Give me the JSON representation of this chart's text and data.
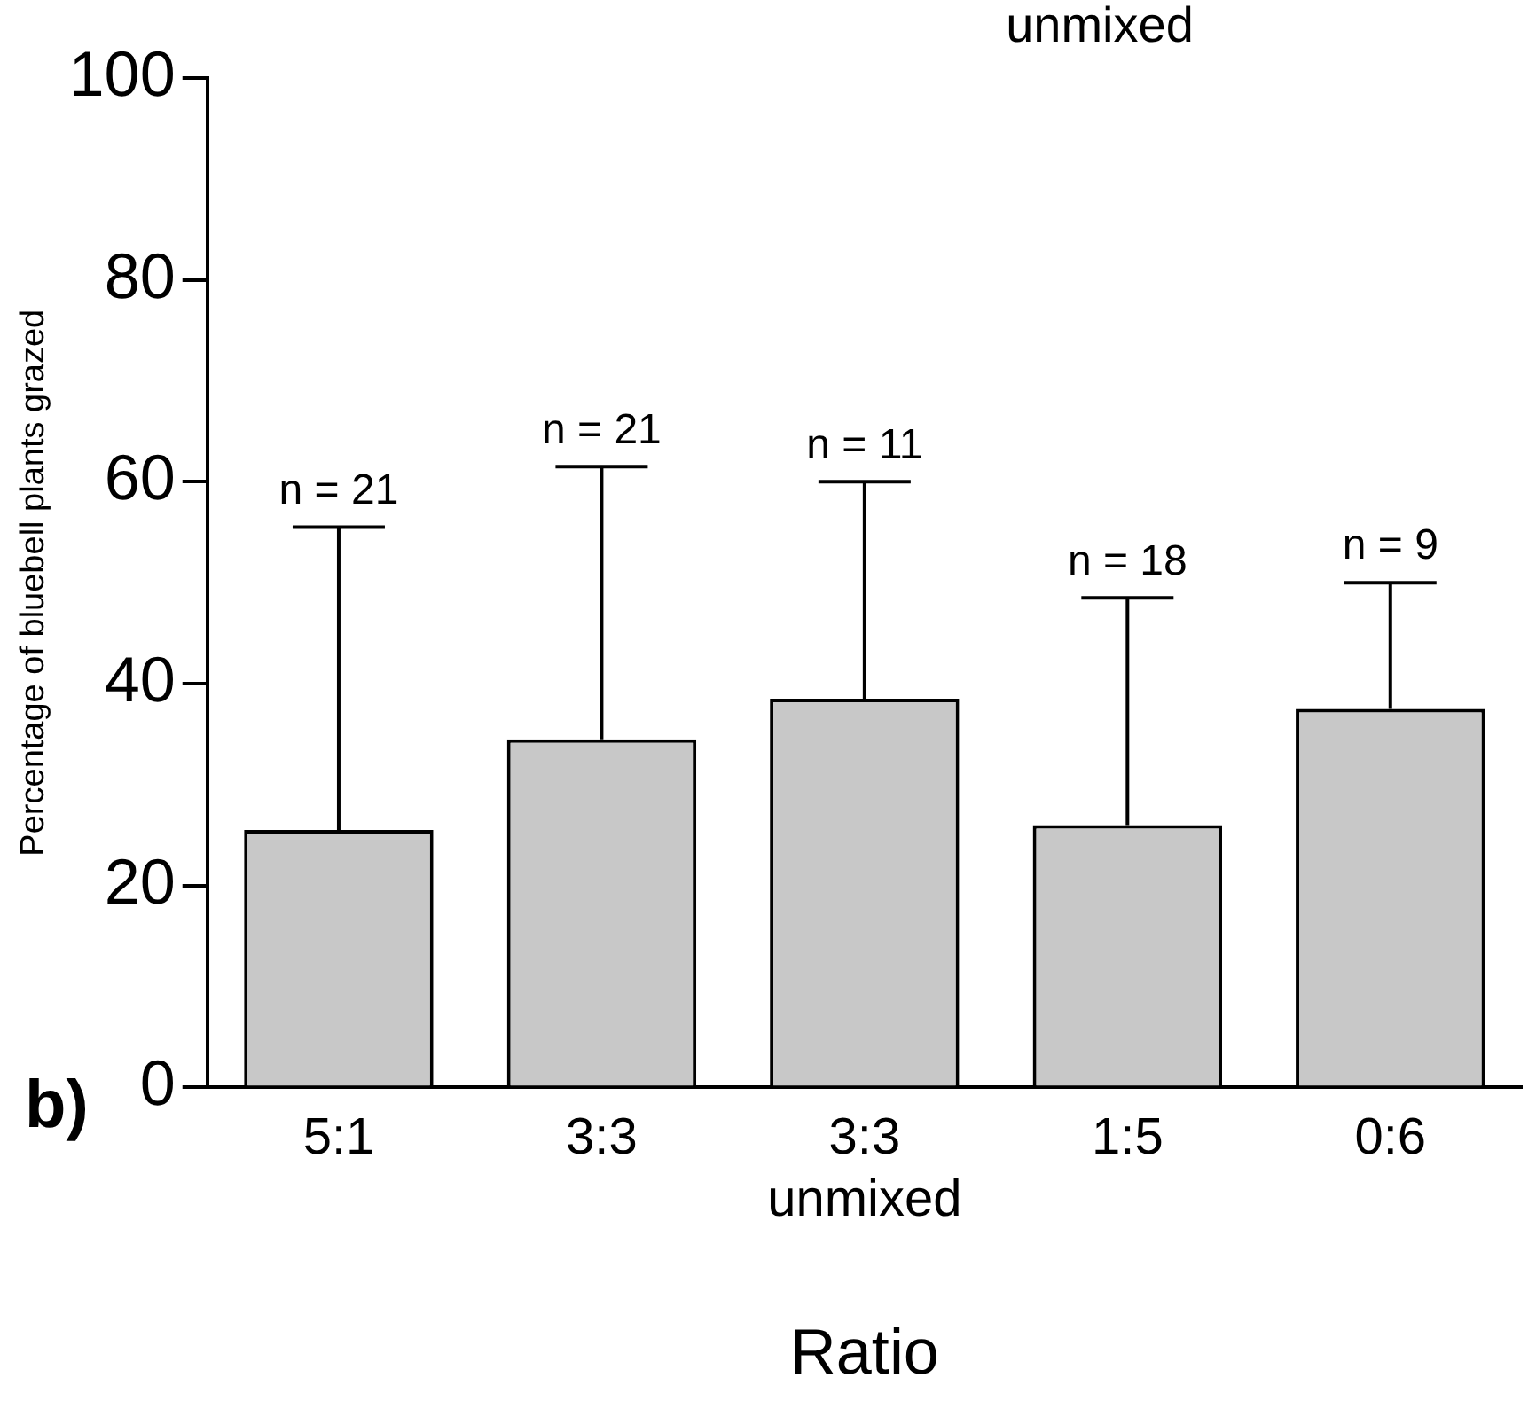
{
  "chart_data": {
    "type": "bar",
    "xlabel": "Ratio",
    "ylabel": "Percentage of bluebell plants grazed",
    "categories": [
      "5:1",
      "3:3",
      "3:3\nunmixed",
      "1:5",
      "0:6"
    ],
    "values": [
      25.5,
      34.5,
      38.5,
      26,
      37.5
    ],
    "errors": [
      [
        25.5,
        55.5
      ],
      [
        34.5,
        61.5
      ],
      [
        38.5,
        60
      ],
      [
        26,
        48.5
      ],
      [
        37.5,
        50
      ]
    ],
    "color": "#c8c8c8",
    "ylim": [
      0,
      100
    ],
    "yticks": [
      0,
      20,
      40,
      60,
      80,
      100
    ],
    "grid": false,
    "legend": false,
    "annotations": [
      "unmixed",
      "b)",
      {
        "text": "n = 21",
        "x": "5:1",
        "y": 55.5
      },
      {
        "text": "n = 21",
        "x": "3:3",
        "y": 61.5
      },
      {
        "text": "n = 11",
        "x": "3:3\nunmixed",
        "y": 60
      },
      {
        "text": "n = 18",
        "x": "1:5",
        "y": 48.5
      },
      {
        "text": "n = 9",
        "x": "0:6",
        "y": 50
      }
    ]
  }
}
